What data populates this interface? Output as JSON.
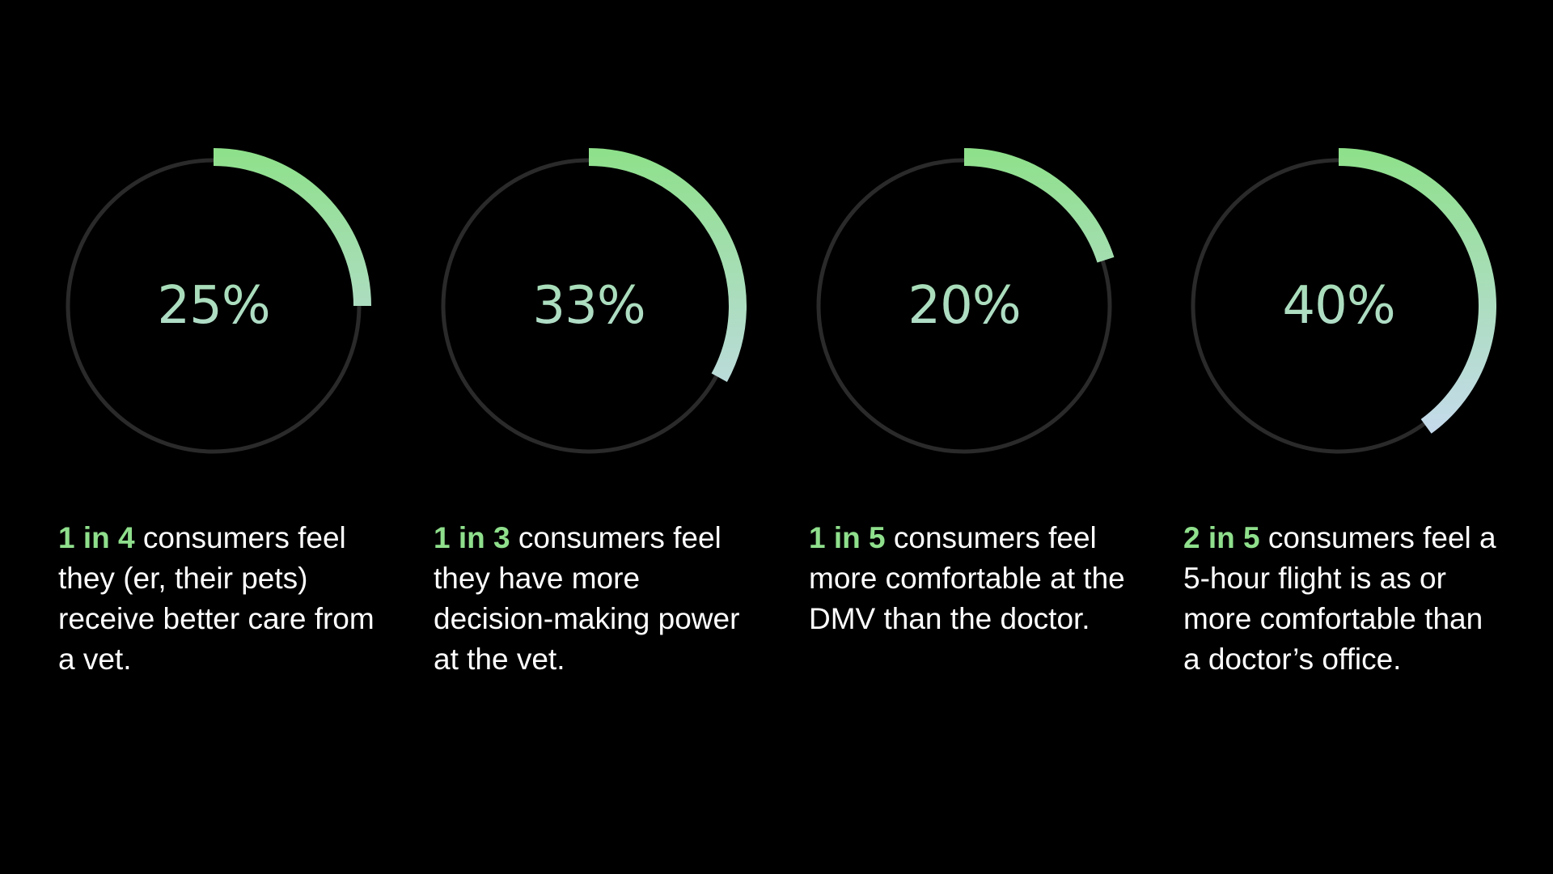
{
  "colors": {
    "background": "#000000",
    "track": "#2a2a2a",
    "arc_start": "#8ee08a",
    "arc_end": "#c9daf3",
    "highlight": "#8fdf8c",
    "body_text": "#ffffff"
  },
  "chart_data": [
    {
      "type": "pie",
      "style": "donut-progress",
      "value": 25,
      "label": "25%",
      "highlight": "1 in 4",
      "text": " consumers feel they (er, their pets) receive better care from a vet."
    },
    {
      "type": "pie",
      "style": "donut-progress",
      "value": 33,
      "label": "33%",
      "highlight": "1 in 3",
      "text": " consumers feel they have more decision-making power at the vet."
    },
    {
      "type": "pie",
      "style": "donut-progress",
      "value": 20,
      "label": "20%",
      "highlight": "1 in 5",
      "text": " consumers feel more comfortable at the DMV than the doctor."
    },
    {
      "type": "pie",
      "style": "donut-progress",
      "value": 40,
      "label": "40%",
      "highlight": "2 in 5",
      "text": " consumers feel a 5-hour flight is as or more comfortable than a doctor’s office."
    }
  ]
}
